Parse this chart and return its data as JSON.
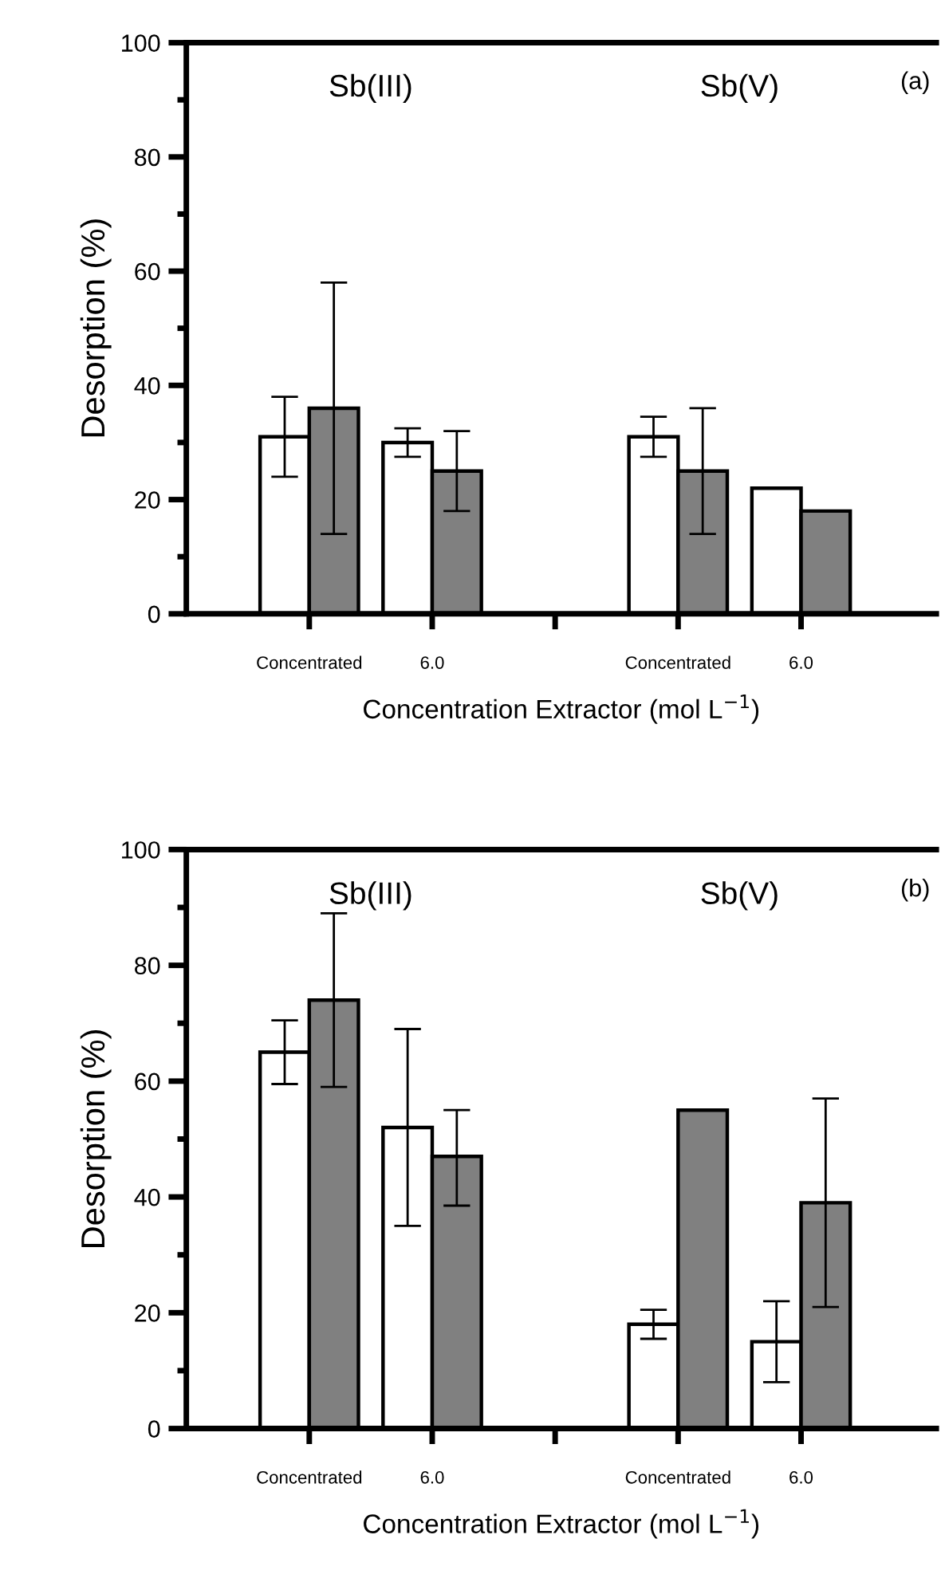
{
  "chart_data": [
    {
      "type": "bar",
      "categories": [
        "Concentrated",
        "6.0",
        null,
        "Concentrated",
        "6.0"
      ],
      "ylabel": "Desorption (%)",
      "xlabel": "Concentration Extractor (mol L$^{−1}$)",
      "annotations": [
        "Sb(III)",
        "Sb(V)",
        "(a)"
      ],
      "series": [
        {
          "color": "#ffffff",
          "values": [
            31,
            30,
            null,
            31,
            22
          ],
          "errors": [
            [
              24,
              38
            ],
            [
              27.5,
              32.5
            ],
            null,
            [
              27.5,
              34.5
            ],
            null
          ]
        },
        {
          "color": "#808080",
          "values": [
            36,
            25,
            null,
            25,
            18
          ],
          "errors": [
            [
              14,
              58
            ],
            [
              18,
              32
            ],
            null,
            [
              14,
              36
            ],
            null
          ]
        }
      ],
      "ylim": [
        0,
        100
      ],
      "yticks": [
        0,
        {
          "value": 10,
          "label": null
        },
        20,
        {
          "value": 30,
          "label": null
        },
        40,
        {
          "value": 50,
          "label": null
        },
        60,
        {
          "value": 70,
          "label": null
        },
        80,
        {
          "value": 90,
          "label": null
        },
        100
      ],
      "grid": false,
      "legend": false
    },
    {
      "type": "bar",
      "categories": [
        "Concentrated",
        "6.0",
        null,
        "Concentrated",
        "6.0"
      ],
      "ylabel": "Desorption (%)",
      "xlabel": "Concentration Extractor (mol L$^{−1}$)",
      "annotations": [
        "Sb(III)",
        "Sb(V)",
        "(b)"
      ],
      "series": [
        {
          "color": "#ffffff",
          "values": [
            65,
            52,
            null,
            18,
            15
          ],
          "errors": [
            [
              59.5,
              70.5
            ],
            [
              35,
              69
            ],
            null,
            [
              15.5,
              20.5
            ],
            [
              8,
              22
            ]
          ]
        },
        {
          "color": "#808080",
          "values": [
            74,
            47,
            null,
            55,
            39
          ],
          "errors": [
            [
              59,
              89
            ],
            [
              38.5,
              55
            ],
            null,
            null,
            [
              21,
              57
            ]
          ]
        }
      ],
      "ylim": [
        0,
        100
      ],
      "yticks": [
        0,
        {
          "value": 10,
          "label": null
        },
        20,
        {
          "value": 30,
          "label": null
        },
        40,
        {
          "value": 50,
          "label": null
        },
        60,
        {
          "value": 70,
          "label": null
        },
        80,
        {
          "value": 90,
          "label": null
        },
        100
      ],
      "grid": false,
      "legend": false
    }
  ]
}
